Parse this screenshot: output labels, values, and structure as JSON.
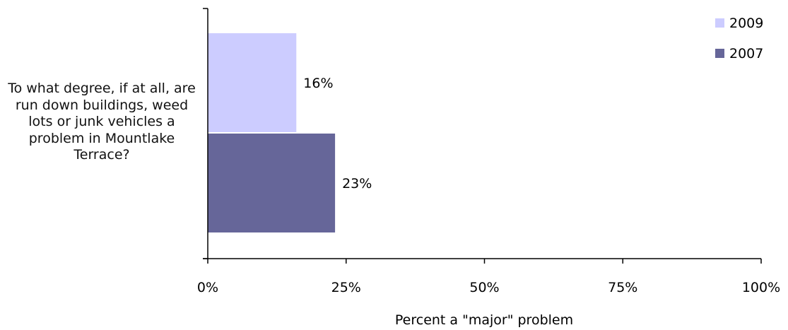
{
  "chart_data": {
    "type": "bar",
    "orientation": "horizontal",
    "categories": [
      "To what degree, if at all, are run down buildings, weed lots or junk vehicles a problem in Mountlake Terrace?"
    ],
    "series": [
      {
        "name": "2009",
        "values": [
          16
        ],
        "color": "#ccccff",
        "data_label": "16%"
      },
      {
        "name": "2007",
        "values": [
          23
        ],
        "color": "#666699",
        "data_label": "23%"
      }
    ],
    "xlabel": "Percent a \"major\" problem",
    "ylabel": "",
    "xlim": [
      0,
      100
    ],
    "xticks": [
      0,
      25,
      50,
      75,
      100
    ],
    "xtick_labels": [
      "0%",
      "25%",
      "50%",
      "75%",
      "100%"
    ],
    "legend": {
      "placement": "top-right",
      "order": [
        "2009",
        "2007"
      ]
    },
    "grid": false
  }
}
